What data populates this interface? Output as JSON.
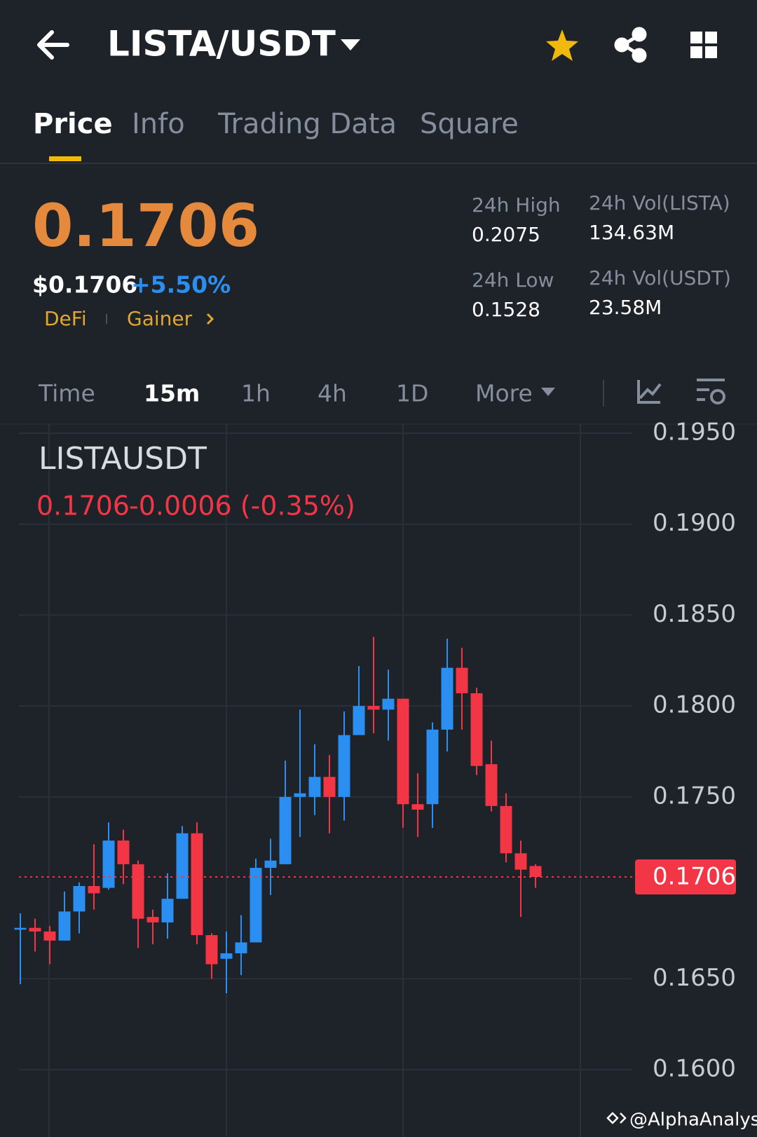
{
  "header": {
    "pair": "LISTA/USDT"
  },
  "tabs": [
    "Price",
    "Info",
    "Trading Data",
    "Square"
  ],
  "price": {
    "last": "0.1706",
    "usd": "$0.1706",
    "change": "+5.50%",
    "tags": [
      "DeFi",
      "Gainer"
    ]
  },
  "stats": [
    {
      "label": "24h High",
      "value": "0.2075"
    },
    {
      "label": "24h Vol(LISTA)",
      "value": "134.63M"
    },
    {
      "label": "24h Low",
      "value": "0.1528"
    },
    {
      "label": "24h Vol(USDT)",
      "value": "23.58M"
    }
  ],
  "intervals": [
    "Time",
    "15m",
    "1h",
    "4h",
    "1D",
    "More"
  ],
  "chart_data": {
    "type": "candlestick",
    "title": "LISTAUSDT",
    "legend_close": "0.1706",
    "legend_change": "-0.0006 (-0.35%)",
    "up_color": "#2a8ff0",
    "down_color": "#f23645",
    "open": [
      0.1677,
      0.1678,
      0.1676,
      0.1671,
      0.1687,
      0.1701,
      0.17,
      0.1726,
      0.1713,
      0.1684,
      0.1681,
      0.1694,
      0.173,
      0.1674,
      0.1661,
      0.1664,
      0.167,
      0.1711,
      0.1713,
      0.175,
      0.175,
      0.1761,
      0.175,
      0.1784,
      0.18,
      0.1798,
      0.1804,
      0.1746,
      0.1746,
      0.1787,
      0.1821,
      0.1807,
      0.1768,
      0.1745,
      0.1719,
      0.1712
    ],
    "high": [
      0.1686,
      0.1683,
      0.1679,
      0.1698,
      0.1703,
      0.1724,
      0.1736,
      0.1732,
      0.1715,
      0.1688,
      0.1708,
      0.1734,
      0.1736,
      0.1675,
      0.1676,
      0.1685,
      0.1716,
      0.1727,
      0.177,
      0.1798,
      0.1779,
      0.1773,
      0.1797,
      0.1822,
      0.1838,
      0.182,
      0.1804,
      0.1763,
      0.1791,
      0.1837,
      0.1832,
      0.181,
      0.1781,
      0.1752,
      0.1726,
      0.1713
    ],
    "low": [
      0.1647,
      0.1665,
      0.1658,
      0.1671,
      0.1675,
      0.1688,
      0.1699,
      0.1702,
      0.1667,
      0.1669,
      0.1672,
      0.1694,
      0.1669,
      0.165,
      0.1642,
      0.1652,
      0.167,
      0.1696,
      0.1713,
      0.1728,
      0.174,
      0.173,
      0.1737,
      0.1784,
      0.1785,
      0.1781,
      0.1733,
      0.1728,
      0.1733,
      0.1775,
      0.1787,
      0.1762,
      0.1742,
      0.1714,
      0.1684,
      0.17
    ],
    "close": [
      0.1678,
      0.1676,
      0.1671,
      0.1687,
      0.1701,
      0.1697,
      0.1726,
      0.1713,
      0.1683,
      0.1681,
      0.1694,
      0.173,
      0.1674,
      0.1658,
      0.1664,
      0.167,
      0.1711,
      0.1715,
      0.175,
      0.1752,
      0.1761,
      0.175,
      0.1784,
      0.18,
      0.1798,
      0.1804,
      0.1746,
      0.1743,
      0.1787,
      0.1821,
      0.1807,
      0.1767,
      0.1745,
      0.1719,
      0.171,
      0.1706
    ],
    "last_price": 0.1706,
    "ylim": [
      0.1563,
      0.1955
    ],
    "yticks": [
      {
        "value": 0.195,
        "label": "0.1950"
      },
      {
        "value": 0.19,
        "label": "0.1900"
      },
      {
        "value": 0.185,
        "label": "0.1850"
      },
      {
        "value": 0.18,
        "label": "0.1800"
      },
      {
        "value": 0.175,
        "label": "0.1750"
      },
      {
        "value": 0.165,
        "label": "0.1650"
      },
      {
        "value": 0.16,
        "label": "0.1600"
      }
    ],
    "grid": true
  },
  "watermark": "@AlphaAnalyst"
}
